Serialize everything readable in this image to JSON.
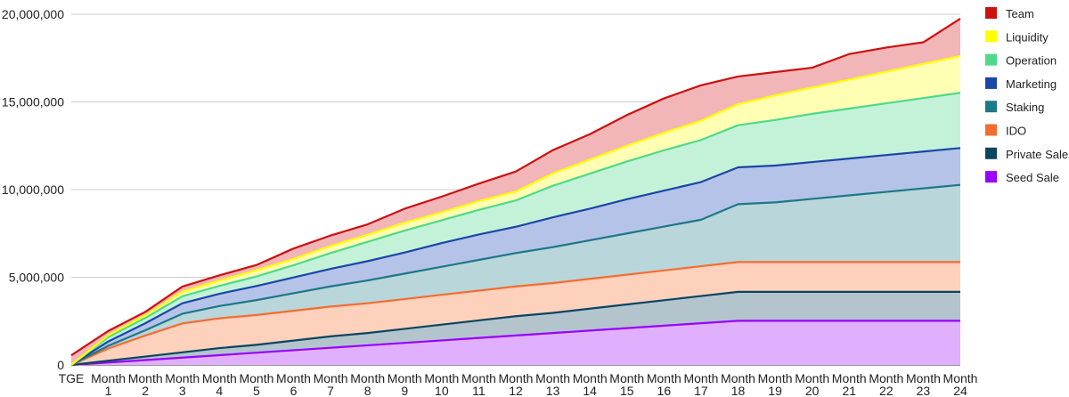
{
  "chart_data": {
    "type": "area",
    "stacked": true,
    "title": "",
    "xlabel": "",
    "ylabel": "",
    "ylim": [
      0,
      20000000
    ],
    "y_ticks": [
      0,
      5000000,
      10000000,
      15000000,
      20000000
    ],
    "y_tick_labels": [
      "0",
      "5,000,000",
      "10,000,000",
      "15,000,000",
      "20,000,000"
    ],
    "grid": true,
    "legend_position": "right",
    "categories": [
      [
        "TGE",
        ""
      ],
      [
        "Month",
        "1"
      ],
      [
        "Month",
        "2"
      ],
      [
        "Month",
        "3"
      ],
      [
        "Month",
        "4"
      ],
      [
        "Month",
        "5"
      ],
      [
        "Month",
        "6"
      ],
      [
        "Month",
        "7"
      ],
      [
        "Month",
        "8"
      ],
      [
        "Month",
        "9"
      ],
      [
        "Month",
        "10"
      ],
      [
        "Month",
        "11"
      ],
      [
        "Month",
        "12"
      ],
      [
        "Month",
        "13"
      ],
      [
        "Month",
        "14"
      ],
      [
        "Month",
        "15"
      ],
      [
        "Month",
        "16"
      ],
      [
        "Month",
        "17"
      ],
      [
        "Month",
        "18"
      ],
      [
        "Month",
        "19"
      ],
      [
        "Month",
        "20"
      ],
      [
        "Month",
        "21"
      ],
      [
        "Month",
        "22"
      ],
      [
        "Month",
        "23"
      ],
      [
        "Month",
        "24"
      ]
    ],
    "series": [
      {
        "name": "Seed Sale",
        "color": "#9900ff",
        "fill": "#e0b0ff",
        "values": [
          0,
          140000,
          280000,
          420000,
          560000,
          700000,
          840000,
          980000,
          1120000,
          1260000,
          1400000,
          1540000,
          1680000,
          1820000,
          1960000,
          2100000,
          2240000,
          2380000,
          2520000,
          2520000,
          2520000,
          2520000,
          2520000,
          2520000,
          2520000
        ]
      },
      {
        "name": "Private Sale",
        "color": "#0b4560",
        "fill": "#b3c4cd",
        "values": [
          0,
          100000,
          200000,
          300000,
          400000,
          450000,
          550000,
          650000,
          700000,
          800000,
          900000,
          1000000,
          1100000,
          1150000,
          1250000,
          1350000,
          1450000,
          1550000,
          1650000,
          1650000,
          1650000,
          1650000,
          1650000,
          1650000,
          1650000
        ]
      },
      {
        "name": "IDO",
        "color": "#f56c30",
        "fill": "#fdd1bb",
        "values": [
          0,
          700000,
          1200000,
          1650000,
          1700000,
          1700000,
          1700000,
          1700000,
          1700000,
          1700000,
          1700000,
          1700000,
          1700000,
          1700000,
          1700000,
          1700000,
          1700000,
          1700000,
          1700000,
          1700000,
          1700000,
          1700000,
          1700000,
          1700000,
          1700000
        ]
      },
      {
        "name": "Staking",
        "color": "#1d7887",
        "fill": "#b9d6da",
        "values": [
          0,
          150000,
          300000,
          550000,
          700000,
          850000,
          1000000,
          1150000,
          1300000,
          1450000,
          1600000,
          1750000,
          1900000,
          2050000,
          2200000,
          2350000,
          2500000,
          2650000,
          3300000,
          3400000,
          3600000,
          3800000,
          4000000,
          4200000,
          4400000
        ]
      },
      {
        "name": "Marketing",
        "color": "#1a46a8",
        "fill": "#b5c3e8",
        "values": [
          0,
          250000,
          400000,
          600000,
          700000,
          800000,
          900000,
          1000000,
          1100000,
          1200000,
          1350000,
          1450000,
          1500000,
          1700000,
          1800000,
          1950000,
          2050000,
          2150000,
          2100000,
          2100000,
          2100000,
          2100000,
          2100000,
          2100000,
          2100000
        ]
      },
      {
        "name": "Operation",
        "color": "#4fd98a",
        "fill": "#c4f2d8",
        "values": [
          0,
          250000,
          300000,
          400000,
          450000,
          550000,
          700000,
          900000,
          1100000,
          1250000,
          1300000,
          1400000,
          1500000,
          1800000,
          2000000,
          2150000,
          2300000,
          2400000,
          2400000,
          2600000,
          2750000,
          2850000,
          2950000,
          3050000,
          3150000
        ]
      },
      {
        "name": "Liquidity",
        "color": "#ffff00",
        "fill": "#ffffb4",
        "values": [
          0,
          100000,
          150000,
          250000,
          300000,
          350000,
          350000,
          400000,
          400000,
          450000,
          450000,
          500000,
          500000,
          700000,
          800000,
          900000,
          1000000,
          1100000,
          1200000,
          1400000,
          1500000,
          1650000,
          1800000,
          1950000,
          2100000
        ]
      },
      {
        "name": "Team",
        "color": "#cc1111",
        "fill": "#f2b5b8",
        "values": [
          550000,
          250000,
          200000,
          300000,
          300000,
          300000,
          600000,
          600000,
          600000,
          800000,
          900000,
          1000000,
          1150000,
          1330000,
          1450000,
          1750000,
          1960000,
          2020000,
          1580000,
          1330000,
          1130000,
          1460000,
          1380000,
          1230000,
          2130000
        ]
      }
    ]
  }
}
